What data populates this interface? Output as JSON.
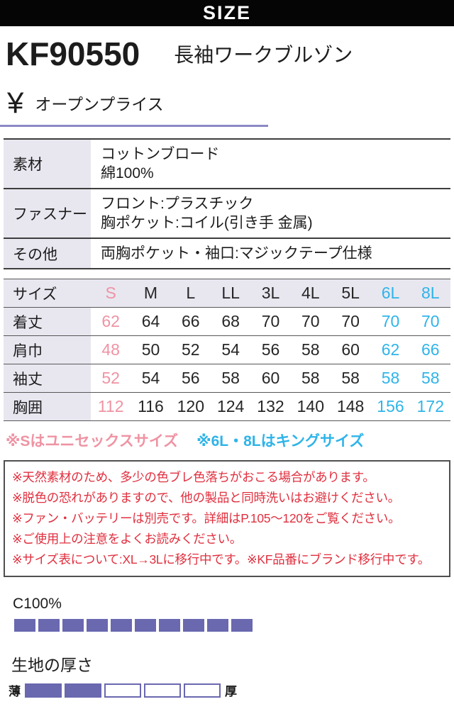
{
  "header": {
    "title": "SIZE"
  },
  "product": {
    "code": "KF90550",
    "name": "長袖ワークブルゾン",
    "currency_symbol": "¥",
    "price": "オープンプライス"
  },
  "spec_table": {
    "rows": [
      {
        "label": "素材",
        "lines": [
          "コットンブロード",
          "綿100%"
        ]
      },
      {
        "label": "ファスナー",
        "lines": [
          "フロント:プラスチック",
          "胸ポケット:コイル(引き手 金属)"
        ]
      },
      {
        "label": "その他",
        "lines": [
          "両胸ポケット・袖口:マジックテープ仕様"
        ]
      }
    ]
  },
  "size_table": {
    "header_label": "サイズ",
    "columns": [
      {
        "label": "S",
        "color": "pink"
      },
      {
        "label": "M",
        "color": "dark"
      },
      {
        "label": "L",
        "color": "dark"
      },
      {
        "label": "LL",
        "color": "dark"
      },
      {
        "label": "3L",
        "color": "dark"
      },
      {
        "label": "4L",
        "color": "dark"
      },
      {
        "label": "5L",
        "color": "dark"
      },
      {
        "label": "6L",
        "color": "cyan"
      },
      {
        "label": "8L",
        "color": "cyan"
      }
    ],
    "rows": [
      {
        "label": "着丈",
        "values": [
          "62",
          "64",
          "66",
          "68",
          "70",
          "70",
          "70",
          "70",
          "70"
        ]
      },
      {
        "label": "肩巾",
        "values": [
          "48",
          "50",
          "52",
          "54",
          "56",
          "58",
          "60",
          "62",
          "66"
        ]
      },
      {
        "label": "袖丈",
        "values": [
          "52",
          "54",
          "56",
          "58",
          "60",
          "58",
          "58",
          "58",
          "58"
        ]
      },
      {
        "label": "胸囲",
        "values": [
          "112",
          "116",
          "120",
          "124",
          "132",
          "140",
          "148",
          "156",
          "172"
        ]
      }
    ]
  },
  "size_notes": [
    {
      "text": "※Sはユニセックスサイズ",
      "color": "pink"
    },
    {
      "text": "※6L・8Lはキングサイズ",
      "color": "cyan"
    }
  ],
  "warnings": [
    "※天然素材のため、多少の色ブレ色落ちがおこる場合があります。",
    "※脱色の恐れがありますので、他の製品と同時洗いはお避けください。",
    "※ファン・バッテリーは別売です。詳細はP.105〜120をご覧ください。",
    "※ご使用上の注意をよくお読みください。",
    "※サイズ表について:XL→3Lに移行中です。※KF品番にブランド移行中です。"
  ],
  "material_bar": {
    "label": "C100%",
    "total": 10,
    "filled": 10
  },
  "thickness": {
    "title": "生地の厚さ",
    "min_label": "薄",
    "max_label": "厚",
    "total": 5,
    "filled": 2
  },
  "colors": {
    "dark": "#262626",
    "pink": "#ef93a3",
    "cyan": "#2fb4e9",
    "purple": "#6a68af",
    "lavender": "#e8e7f0",
    "warning_red": "#e0303f",
    "underline_purple": "#8b89c4"
  }
}
